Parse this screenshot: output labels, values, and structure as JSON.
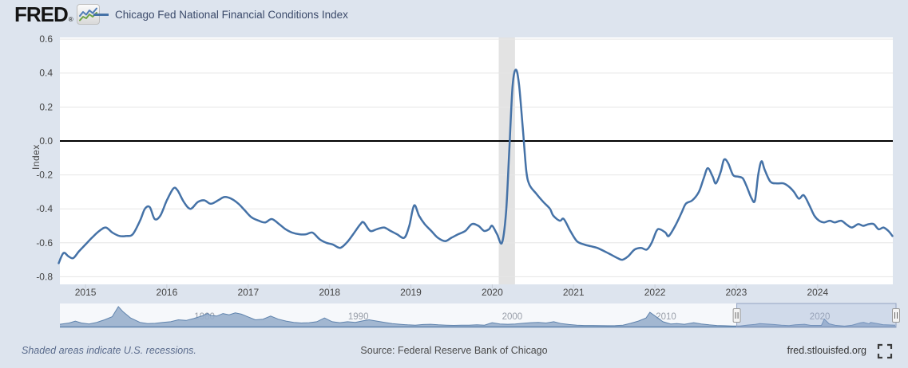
{
  "header": {
    "logo_text": "FRED",
    "logo_reg": "®"
  },
  "legend": {
    "series_label": "Chicago Fed National Financial Conditions Index"
  },
  "y_axis": {
    "label": "Index"
  },
  "colors": {
    "page_bg": "#dde4ee",
    "plot_bg": "#ffffff",
    "gridline": "#e6e6e6",
    "zero_line": "#000000",
    "series_line": "#4572a7",
    "recession_band": "#e3e3e3",
    "axis_text": "#444444",
    "tick_mark": "#c8ced8",
    "nav_bg": "#f6f8fb",
    "nav_area_fill": "#99afcc",
    "nav_area_stroke": "#5f83ad",
    "nav_label": "#999fa9",
    "nav_selection_fill": "rgba(148,168,208,0.38)",
    "nav_selection_stroke": "#93a3c2",
    "handle_fill": "#f4f4f4",
    "handle_stroke": "#9a9a9a",
    "handle_grip": "#666666"
  },
  "chart_data": {
    "type": "line",
    "title": "Chicago Fed National Financial Conditions Index",
    "xlabel": "",
    "ylabel": "Index",
    "xlim": [
      2014.685,
      2024.925
    ],
    "ylim": [
      -0.845,
      0.61
    ],
    "x_ticks": [
      2015,
      2016,
      2017,
      2018,
      2019,
      2020,
      2021,
      2022,
      2023,
      2024
    ],
    "y_ticks": [
      0.6,
      0.4,
      0.2,
      0.0,
      -0.2,
      -0.4,
      -0.6,
      -0.8
    ],
    "zero_line": 0.0,
    "grid": true,
    "recession_bands": [
      [
        2020.08,
        2020.28
      ]
    ],
    "series": [
      {
        "name": "Chicago Fed National Financial Conditions Index",
        "color": "#4572a7",
        "points": [
          [
            2014.67,
            -0.72
          ],
          [
            2014.73,
            -0.66
          ],
          [
            2014.79,
            -0.68
          ],
          [
            2014.85,
            -0.69
          ],
          [
            2014.92,
            -0.65
          ],
          [
            2015.0,
            -0.61
          ],
          [
            2015.08,
            -0.57
          ],
          [
            2015.17,
            -0.53
          ],
          [
            2015.25,
            -0.51
          ],
          [
            2015.33,
            -0.54
          ],
          [
            2015.42,
            -0.56
          ],
          [
            2015.5,
            -0.56
          ],
          [
            2015.58,
            -0.55
          ],
          [
            2015.67,
            -0.47
          ],
          [
            2015.73,
            -0.4
          ],
          [
            2015.79,
            -0.39
          ],
          [
            2015.85,
            -0.46
          ],
          [
            2015.92,
            -0.44
          ],
          [
            2016.0,
            -0.35
          ],
          [
            2016.08,
            -0.28
          ],
          [
            2016.13,
            -0.29
          ],
          [
            2016.21,
            -0.36
          ],
          [
            2016.29,
            -0.4
          ],
          [
            2016.38,
            -0.36
          ],
          [
            2016.46,
            -0.35
          ],
          [
            2016.54,
            -0.37
          ],
          [
            2016.63,
            -0.35
          ],
          [
            2016.71,
            -0.33
          ],
          [
            2016.79,
            -0.34
          ],
          [
            2016.88,
            -0.37
          ],
          [
            2016.96,
            -0.41
          ],
          [
            2017.04,
            -0.45
          ],
          [
            2017.13,
            -0.47
          ],
          [
            2017.21,
            -0.48
          ],
          [
            2017.29,
            -0.46
          ],
          [
            2017.38,
            -0.49
          ],
          [
            2017.46,
            -0.52
          ],
          [
            2017.54,
            -0.54
          ],
          [
            2017.63,
            -0.55
          ],
          [
            2017.71,
            -0.55
          ],
          [
            2017.79,
            -0.54
          ],
          [
            2017.88,
            -0.58
          ],
          [
            2017.96,
            -0.6
          ],
          [
            2018.04,
            -0.61
          ],
          [
            2018.13,
            -0.63
          ],
          [
            2018.21,
            -0.6
          ],
          [
            2018.29,
            -0.55
          ],
          [
            2018.38,
            -0.49
          ],
          [
            2018.42,
            -0.48
          ],
          [
            2018.5,
            -0.53
          ],
          [
            2018.58,
            -0.52
          ],
          [
            2018.67,
            -0.51
          ],
          [
            2018.75,
            -0.53
          ],
          [
            2018.83,
            -0.55
          ],
          [
            2018.92,
            -0.57
          ],
          [
            2018.98,
            -0.5
          ],
          [
            2019.04,
            -0.38
          ],
          [
            2019.1,
            -0.44
          ],
          [
            2019.17,
            -0.49
          ],
          [
            2019.25,
            -0.53
          ],
          [
            2019.33,
            -0.57
          ],
          [
            2019.42,
            -0.59
          ],
          [
            2019.5,
            -0.57
          ],
          [
            2019.58,
            -0.55
          ],
          [
            2019.67,
            -0.53
          ],
          [
            2019.75,
            -0.49
          ],
          [
            2019.83,
            -0.5
          ],
          [
            2019.9,
            -0.53
          ],
          [
            2019.96,
            -0.52
          ],
          [
            2020.0,
            -0.5
          ],
          [
            2020.06,
            -0.55
          ],
          [
            2020.12,
            -0.6
          ],
          [
            2020.17,
            -0.42
          ],
          [
            2020.21,
            -0.05
          ],
          [
            2020.25,
            0.32
          ],
          [
            2020.29,
            0.42
          ],
          [
            2020.33,
            0.33
          ],
          [
            2020.38,
            0.05
          ],
          [
            2020.42,
            -0.18
          ],
          [
            2020.46,
            -0.26
          ],
          [
            2020.54,
            -0.31
          ],
          [
            2020.63,
            -0.36
          ],
          [
            2020.71,
            -0.4
          ],
          [
            2020.75,
            -0.44
          ],
          [
            2020.83,
            -0.47
          ],
          [
            2020.88,
            -0.46
          ],
          [
            2020.96,
            -0.53
          ],
          [
            2021.04,
            -0.59
          ],
          [
            2021.13,
            -0.61
          ],
          [
            2021.21,
            -0.62
          ],
          [
            2021.29,
            -0.63
          ],
          [
            2021.38,
            -0.65
          ],
          [
            2021.46,
            -0.67
          ],
          [
            2021.54,
            -0.69
          ],
          [
            2021.6,
            -0.7
          ],
          [
            2021.67,
            -0.68
          ],
          [
            2021.75,
            -0.64
          ],
          [
            2021.83,
            -0.63
          ],
          [
            2021.9,
            -0.64
          ],
          [
            2021.96,
            -0.6
          ],
          [
            2022.02,
            -0.53
          ],
          [
            2022.06,
            -0.52
          ],
          [
            2022.13,
            -0.54
          ],
          [
            2022.17,
            -0.56
          ],
          [
            2022.25,
            -0.5
          ],
          [
            2022.33,
            -0.42
          ],
          [
            2022.38,
            -0.37
          ],
          [
            2022.46,
            -0.35
          ],
          [
            2022.54,
            -0.3
          ],
          [
            2022.6,
            -0.22
          ],
          [
            2022.65,
            -0.16
          ],
          [
            2022.71,
            -0.21
          ],
          [
            2022.75,
            -0.25
          ],
          [
            2022.81,
            -0.18
          ],
          [
            2022.85,
            -0.11
          ],
          [
            2022.9,
            -0.13
          ],
          [
            2022.96,
            -0.2
          ],
          [
            2023.02,
            -0.21
          ],
          [
            2023.08,
            -0.22
          ],
          [
            2023.13,
            -0.27
          ],
          [
            2023.19,
            -0.34
          ],
          [
            2023.23,
            -0.35
          ],
          [
            2023.27,
            -0.2
          ],
          [
            2023.31,
            -0.12
          ],
          [
            2023.35,
            -0.17
          ],
          [
            2023.42,
            -0.24
          ],
          [
            2023.5,
            -0.25
          ],
          [
            2023.58,
            -0.25
          ],
          [
            2023.65,
            -0.27
          ],
          [
            2023.71,
            -0.3
          ],
          [
            2023.77,
            -0.34
          ],
          [
            2023.83,
            -0.32
          ],
          [
            2023.9,
            -0.38
          ],
          [
            2023.96,
            -0.44
          ],
          [
            2024.02,
            -0.47
          ],
          [
            2024.08,
            -0.48
          ],
          [
            2024.15,
            -0.47
          ],
          [
            2024.21,
            -0.48
          ],
          [
            2024.29,
            -0.47
          ],
          [
            2024.35,
            -0.49
          ],
          [
            2024.42,
            -0.51
          ],
          [
            2024.5,
            -0.49
          ],
          [
            2024.56,
            -0.5
          ],
          [
            2024.63,
            -0.49
          ],
          [
            2024.69,
            -0.49
          ],
          [
            2024.75,
            -0.52
          ],
          [
            2024.81,
            -0.51
          ],
          [
            2024.87,
            -0.53
          ],
          [
            2024.92,
            -0.56
          ]
        ]
      }
    ]
  },
  "navigator": {
    "x_ticks": [
      1980,
      1990,
      2000,
      2010,
      2020
    ],
    "xlim": [
      1970.6,
      2024.95
    ],
    "ylim": [
      -0.9,
      2.9
    ],
    "selected_range": [
      2014.6,
      2024.95
    ],
    "points": [
      [
        1970.6,
        -0.4
      ],
      [
        1971.2,
        -0.2
      ],
      [
        1971.6,
        0.1
      ],
      [
        1972.0,
        -0.2
      ],
      [
        1972.5,
        -0.35
      ],
      [
        1973.0,
        -0.1
      ],
      [
        1973.5,
        0.3
      ],
      [
        1974.0,
        0.8
      ],
      [
        1974.4,
        2.4
      ],
      [
        1974.7,
        1.6
      ],
      [
        1975.2,
        0.6
      ],
      [
        1975.8,
        -0.1
      ],
      [
        1976.3,
        -0.3
      ],
      [
        1976.8,
        -0.25
      ],
      [
        1977.3,
        -0.1
      ],
      [
        1977.8,
        0.0
      ],
      [
        1978.3,
        0.3
      ],
      [
        1978.8,
        0.2
      ],
      [
        1979.3,
        0.5
      ],
      [
        1979.8,
        0.9
      ],
      [
        1980.2,
        1.3
      ],
      [
        1980.4,
        1.0
      ],
      [
        1980.8,
        0.9
      ],
      [
        1981.2,
        1.3
      ],
      [
        1981.6,
        1.1
      ],
      [
        1982.0,
        1.4
      ],
      [
        1982.4,
        1.2
      ],
      [
        1982.8,
        0.8
      ],
      [
        1983.3,
        0.3
      ],
      [
        1983.8,
        0.4
      ],
      [
        1984.3,
        0.9
      ],
      [
        1984.8,
        0.4
      ],
      [
        1985.3,
        0.1
      ],
      [
        1985.8,
        -0.1
      ],
      [
        1986.3,
        -0.2
      ],
      [
        1986.8,
        -0.15
      ],
      [
        1987.3,
        0.0
      ],
      [
        1987.8,
        0.6
      ],
      [
        1988.3,
        0.0
      ],
      [
        1988.8,
        -0.15
      ],
      [
        1989.3,
        0.0
      ],
      [
        1989.8,
        -0.1
      ],
      [
        1990.3,
        0.15
      ],
      [
        1990.7,
        0.3
      ],
      [
        1991.2,
        0.1
      ],
      [
        1991.7,
        -0.1
      ],
      [
        1992.2,
        -0.3
      ],
      [
        1992.7,
        -0.4
      ],
      [
        1993.2,
        -0.5
      ],
      [
        1993.7,
        -0.55
      ],
      [
        1994.2,
        -0.45
      ],
      [
        1994.7,
        -0.4
      ],
      [
        1995.2,
        -0.5
      ],
      [
        1995.7,
        -0.55
      ],
      [
        1996.2,
        -0.58
      ],
      [
        1996.7,
        -0.55
      ],
      [
        1997.2,
        -0.55
      ],
      [
        1997.7,
        -0.5
      ],
      [
        1998.2,
        -0.55
      ],
      [
        1998.7,
        -0.15
      ],
      [
        1999.2,
        -0.35
      ],
      [
        1999.7,
        -0.4
      ],
      [
        2000.2,
        -0.35
      ],
      [
        2000.7,
        -0.25
      ],
      [
        2001.2,
        -0.15
      ],
      [
        2001.7,
        -0.1
      ],
      [
        2002.2,
        -0.2
      ],
      [
        2002.7,
        0.0
      ],
      [
        2003.2,
        -0.3
      ],
      [
        2003.7,
        -0.45
      ],
      [
        2004.2,
        -0.55
      ],
      [
        2004.7,
        -0.6
      ],
      [
        2005.2,
        -0.6
      ],
      [
        2005.7,
        -0.62
      ],
      [
        2006.2,
        -0.64
      ],
      [
        2006.7,
        -0.62
      ],
      [
        2007.2,
        -0.55
      ],
      [
        2007.7,
        -0.25
      ],
      [
        2008.2,
        0.1
      ],
      [
        2008.7,
        0.6
      ],
      [
        2008.95,
        1.5
      ],
      [
        2009.3,
        0.9
      ],
      [
        2009.8,
        0.0
      ],
      [
        2010.3,
        -0.35
      ],
      [
        2010.7,
        -0.3
      ],
      [
        2011.2,
        -0.4
      ],
      [
        2011.8,
        -0.15
      ],
      [
        2012.3,
        -0.35
      ],
      [
        2012.8,
        -0.5
      ],
      [
        2013.3,
        -0.6
      ],
      [
        2013.8,
        -0.64
      ],
      [
        2014.3,
        -0.67
      ],
      [
        2014.8,
        -0.68
      ],
      [
        2015.3,
        -0.53
      ],
      [
        2015.8,
        -0.42
      ],
      [
        2016.1,
        -0.29
      ],
      [
        2016.5,
        -0.36
      ],
      [
        2017.0,
        -0.45
      ],
      [
        2017.5,
        -0.54
      ],
      [
        2018.0,
        -0.61
      ],
      [
        2018.4,
        -0.49
      ],
      [
        2019.0,
        -0.4
      ],
      [
        2019.4,
        -0.58
      ],
      [
        2020.1,
        -0.58
      ],
      [
        2020.29,
        0.42
      ],
      [
        2020.6,
        -0.33
      ],
      [
        2021.0,
        -0.57
      ],
      [
        2021.6,
        -0.7
      ],
      [
        2022.1,
        -0.54
      ],
      [
        2022.65,
        -0.16
      ],
      [
        2022.85,
        -0.11
      ],
      [
        2023.2,
        -0.34
      ],
      [
        2023.3,
        -0.12
      ],
      [
        2023.8,
        -0.33
      ],
      [
        2024.1,
        -0.47
      ],
      [
        2024.9,
        -0.56
      ]
    ]
  },
  "footer": {
    "note": "Shaded areas indicate U.S. recessions.",
    "source": "Source: Federal Reserve Bank of Chicago",
    "site": "fred.stlouisfed.org"
  }
}
